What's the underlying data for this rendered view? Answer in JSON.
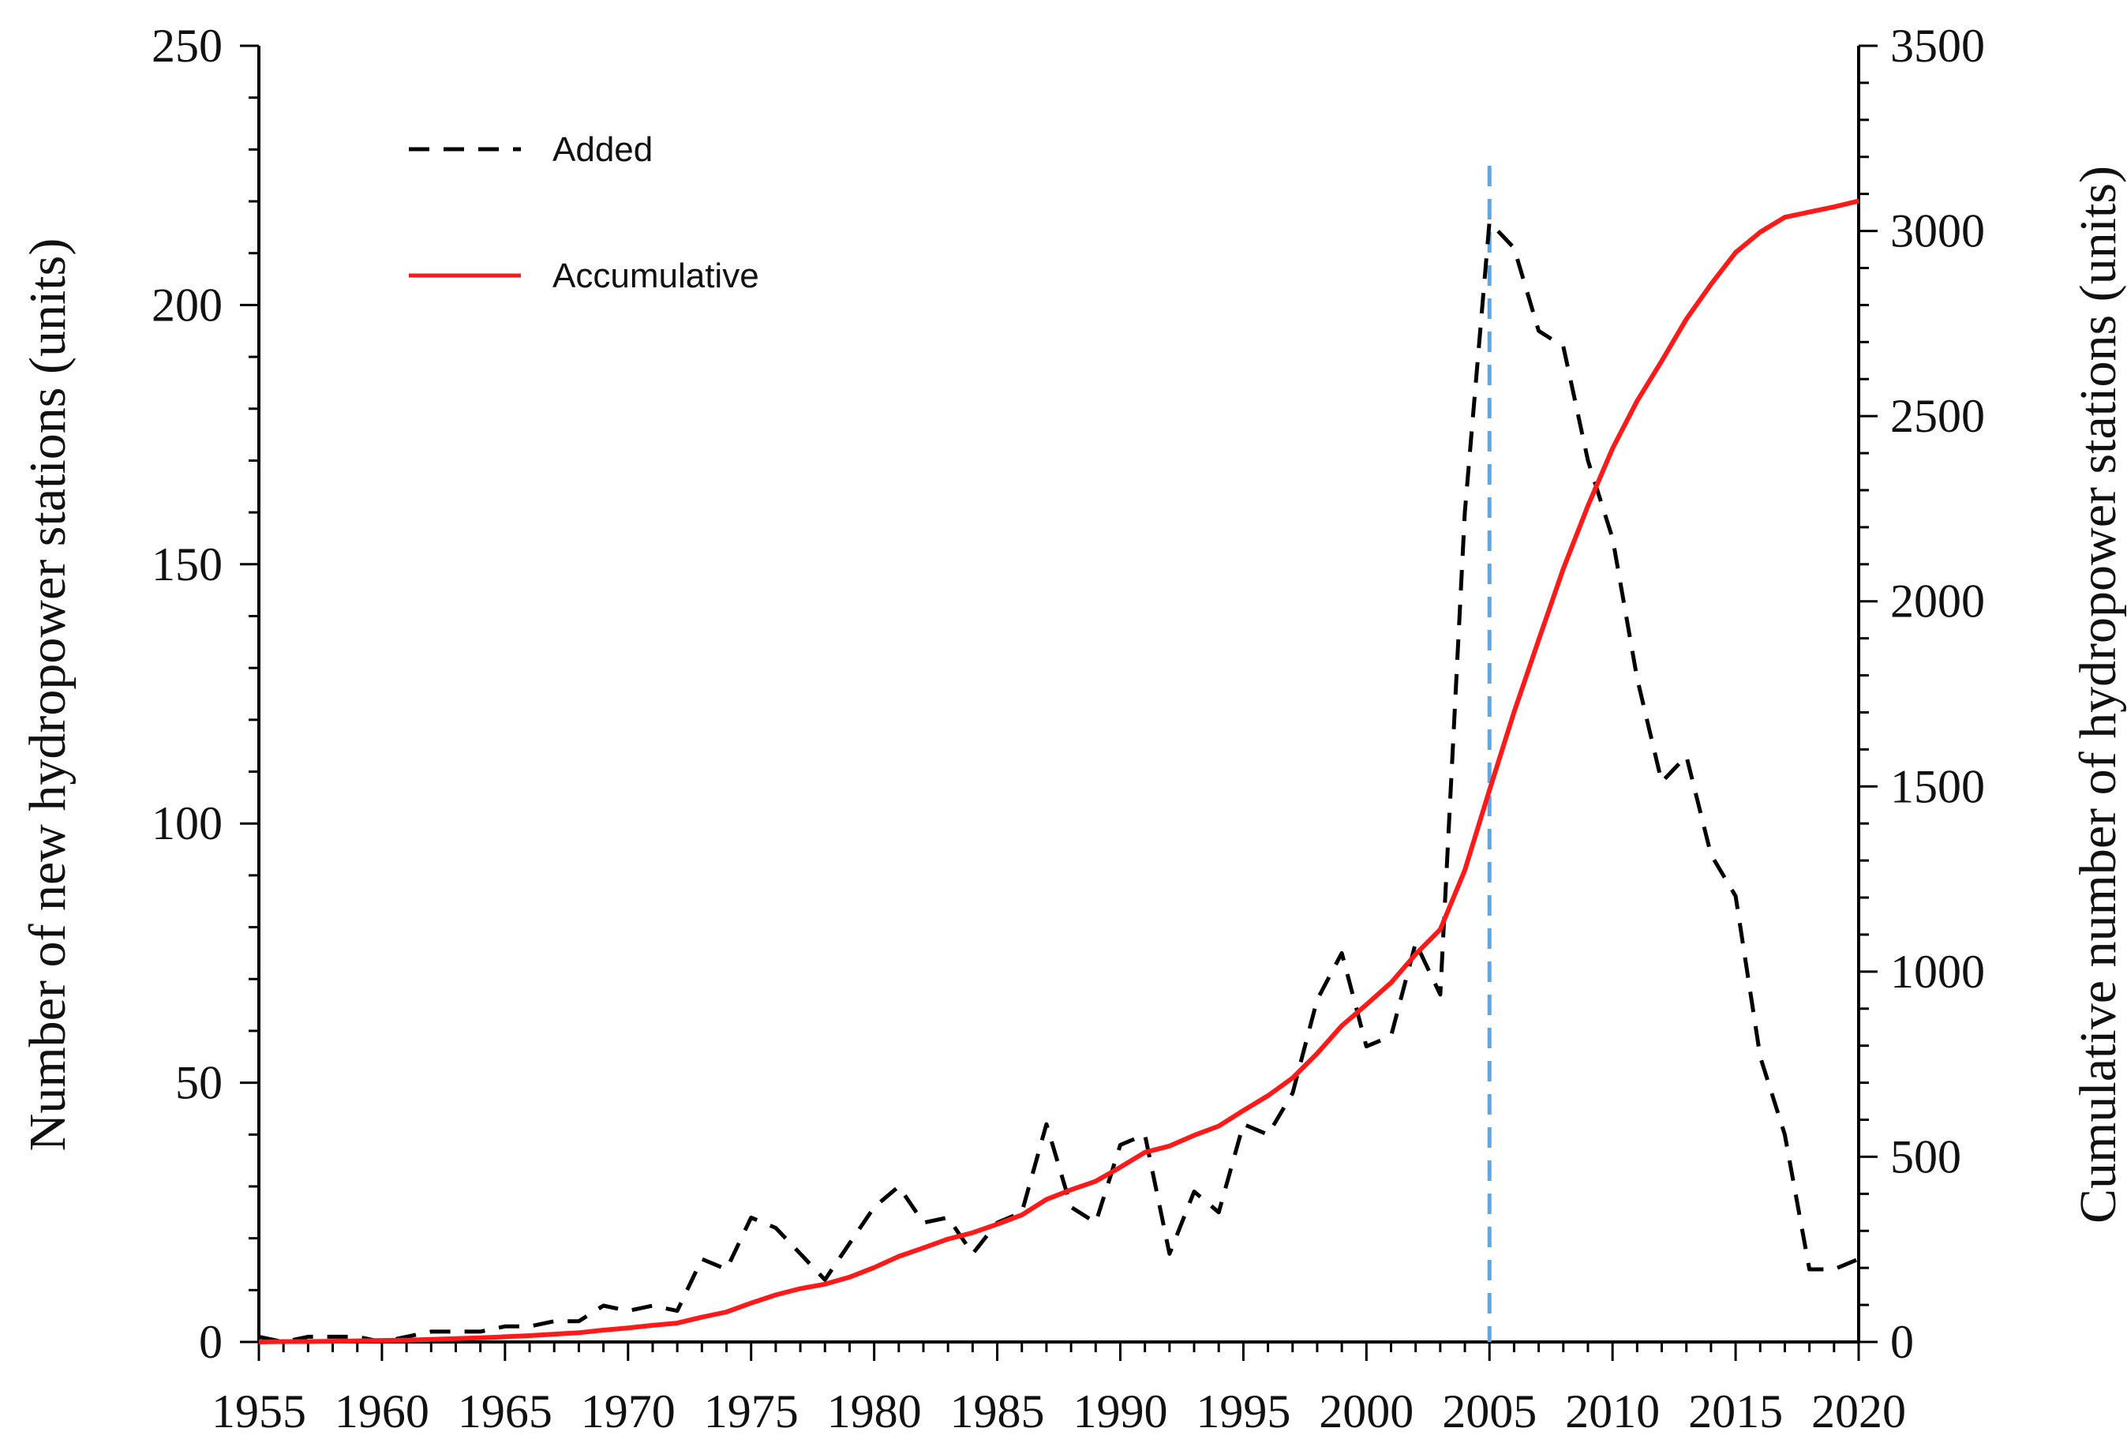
{
  "chart_data": {
    "type": "line",
    "title": "",
    "xlabel": "",
    "ylabel": "Number of new hydropower stations (units)",
    "y2label": "Cumulative number of hydropower stations (units)",
    "xlim": [
      1955,
      2020
    ],
    "ylim": [
      0,
      250
    ],
    "y2lim": [
      0,
      3500
    ],
    "x_ticks": [
      1955,
      1960,
      1965,
      1970,
      1975,
      1980,
      1985,
      1990,
      1995,
      2000,
      2005,
      2010,
      2015,
      2020
    ],
    "y_ticks": [
      0,
      50,
      100,
      150,
      200,
      250
    ],
    "y2_ticks": [
      0,
      500,
      1000,
      1500,
      2000,
      2500,
      3000,
      3500
    ],
    "grid": false,
    "legend_position": "top-left",
    "reference_line": {
      "x": 2005,
      "color": "#5aa9e6",
      "style": "dashed"
    },
    "x": [
      1955,
      1956,
      1957,
      1958,
      1959,
      1960,
      1961,
      1962,
      1963,
      1964,
      1965,
      1966,
      1967,
      1968,
      1969,
      1970,
      1971,
      1972,
      1973,
      1974,
      1975,
      1976,
      1977,
      1978,
      1979,
      1980,
      1981,
      1982,
      1983,
      1984,
      1985,
      1986,
      1987,
      1988,
      1989,
      1990,
      1991,
      1992,
      1993,
      1994,
      1995,
      1996,
      1997,
      1998,
      1999,
      2000,
      2001,
      2002,
      2003,
      2004,
      2005,
      2006,
      2007,
      2008,
      2009,
      2010,
      2011,
      2012,
      2013,
      2014,
      2015,
      2016,
      2017,
      2018,
      2019,
      2020
    ],
    "series": [
      {
        "name": "Added",
        "axis": "left",
        "color": "#000000",
        "style": "dashed",
        "values": [
          1,
          0,
          1,
          1,
          1,
          0,
          1,
          2,
          2,
          2,
          3,
          3,
          4,
          4,
          7,
          6,
          7,
          6,
          16,
          14,
          24,
          22,
          17,
          12,
          19,
          26,
          30,
          23,
          24,
          17,
          23,
          25,
          42,
          26,
          23,
          38,
          40,
          17,
          29,
          25,
          42,
          40,
          48,
          66,
          75,
          57,
          59,
          77,
          67,
          160,
          216,
          211,
          195,
          192,
          170,
          155,
          128,
          108,
          113,
          94,
          86,
          55,
          40,
          14,
          14,
          16
        ]
      },
      {
        "name": "Accumulative",
        "axis": "right",
        "color": "#ff1a1a",
        "style": "solid",
        "values": [
          0,
          1,
          1,
          2,
          3,
          4,
          5,
          7,
          9,
          11,
          14,
          17,
          21,
          25,
          32,
          38,
          45,
          51,
          67,
          81,
          105,
          127,
          144,
          156,
          175,
          201,
          231,
          254,
          278,
          295,
          318,
          343,
          385,
          411,
          434,
          472,
          512,
          529,
          558,
          583,
          625,
          665,
          713,
          779,
          854,
          911,
          970,
          1047,
          1114,
          1274,
          1490,
          1701,
          1896,
          2088,
          2258,
          2413,
          2541,
          2649,
          2762,
          2856,
          2942,
          2997,
          3037,
          3051,
          3065,
          3081
        ]
      }
    ]
  }
}
